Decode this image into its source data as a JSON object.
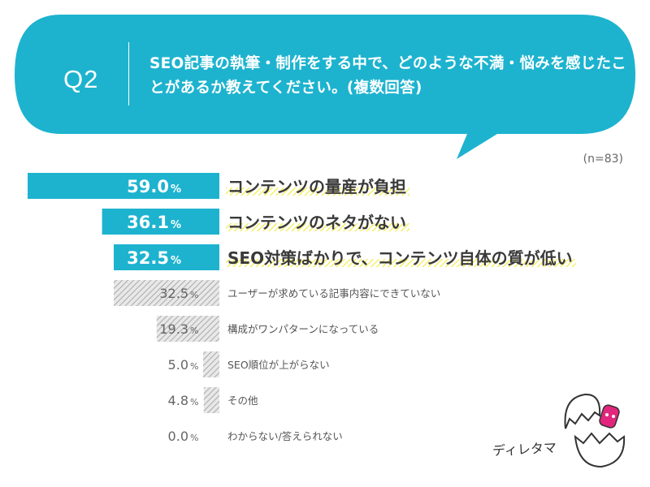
{
  "question": {
    "label": "Q2",
    "text": "SEO記事の執筆・制作をする中で、どのような不満・悩みを感じたことがあるか教えてください。(複数回答)"
  },
  "sample_size": "(n=83)",
  "mascot_name": "ディレタマ",
  "colors": {
    "accent": "#1db3cf",
    "highlight": "#f3eb36",
    "hatch": "#b5b5b5"
  },
  "chart_data": {
    "type": "bar",
    "orientation": "horizontal",
    "unit": "%",
    "categories": [
      "コンテンツの量産が負担",
      "コンテンツのネタがない",
      "SEO対策ばかりで、コンテンツ自体の質が低い",
      "ユーザーが求めている記事内容にできていない",
      "構成がワンパターンになっている",
      "SEO順位が上がらない",
      "その他",
      "わからない/答えられない"
    ],
    "values": [
      59.0,
      36.1,
      32.5,
      32.5,
      19.3,
      5.0,
      4.8,
      0.0
    ],
    "value_labels": [
      "59.0",
      "36.1",
      "32.5",
      "32.5",
      "19.3",
      "5.0",
      "4.8",
      "0.0"
    ],
    "highlighted_top": 3,
    "xlim": [
      0,
      60
    ]
  }
}
